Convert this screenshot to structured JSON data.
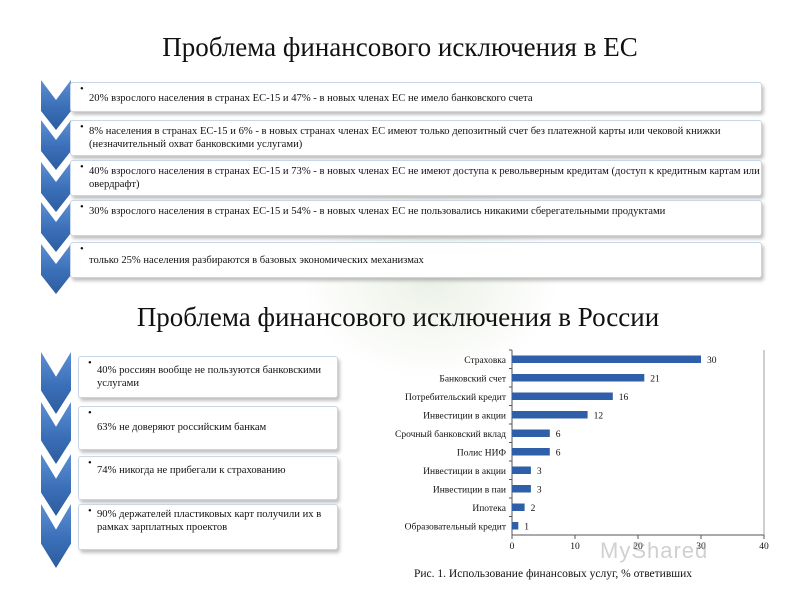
{
  "title_eu": "Проблема финансового исключения в ЕС",
  "title_ru": "Проблема финансового исключения в России",
  "eu_items": [
    "20% взрослого населения в странах ЕС-15 и 47% - в новых членах ЕС не имело банковского счета",
    "8% населения в странах ЕС-15 и 6% - в новых странах членах ЕС имеют только депозитный счет без платежной карты или чековой книжки (незначительный охват банковскими услугами)",
    "40% взрослого населения в странах ЕС-15 и 73% - в новых членах ЕС не имеют доступа к револьверным кредитам (доступ к кредитным картам или овердрафт)",
    "30% взрослого населения в странах ЕС-15 и  54% - в новых членах ЕС не пользовались никакими сберегательными продуктами",
    "только 25% населения разбираются в базовых экономических механизмах"
  ],
  "ru_items": [
    "40% россиян вообще не пользуются банковскими услугами",
    "63% не доверяют российским банкам",
    "74% никогда не прибегали к страхованию",
    "90% держателей пластиковых карт получили их в рамках зарплатных проектов"
  ],
  "accent_color": "#3a6fb8",
  "bar_color": "#2f5fa8",
  "chart_data": {
    "type": "bar",
    "orientation": "horizontal",
    "categories": [
      "Страховка",
      "Банковский счет",
      "Потребительский кредит",
      "Инвестиции в акции",
      "Срочный банковский вклад",
      "Полис НИФ",
      "Инвестиции в акции",
      "Инвестиции в паи",
      "Ипотека",
      "Образовательный кредит"
    ],
    "values": [
      30,
      21,
      16,
      12,
      6,
      6,
      3,
      3,
      2,
      1
    ],
    "xlim": [
      0,
      40
    ],
    "xticks": [
      "0",
      "10",
      "20",
      "30",
      "40"
    ],
    "grid": false
  },
  "caption": "Рис. 1. Использование финансовых услуг, % ответивших",
  "watermark": "MyShared"
}
